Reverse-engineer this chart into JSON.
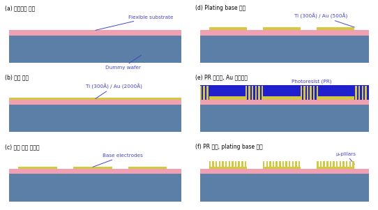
{
  "colors": {
    "dummy_wafer": "#5b7fa6",
    "flexible_sub": "#f0a0b0",
    "metal_gold": "#d4c840",
    "photoresist": "#2020cc",
    "background": "#ffffff",
    "label_color": "#4444cc",
    "title_color": "#000000"
  },
  "panel_titles": {
    "a": "(a) 유연기판 부착",
    "b": "(b) 메탈 증착",
    "c": "(c) 전극 형상 패터닝",
    "d": "(d) Plating base 증착",
    "e": "(e) PR 패터닝, Au 전주도금",
    "f": "(f) PR 제거, plating base 식각"
  },
  "annotations": {
    "a_label1": "Flexible substrate",
    "a_label2": "Dummy wafer",
    "b_label": "Ti (300Å) / Au (2000Å)",
    "c_label": "Base electrodes",
    "d_label": "Ti (300Å) / Au (500Å)",
    "e_label": "Photoresist (PR)",
    "f_label": "μ-pillars"
  }
}
